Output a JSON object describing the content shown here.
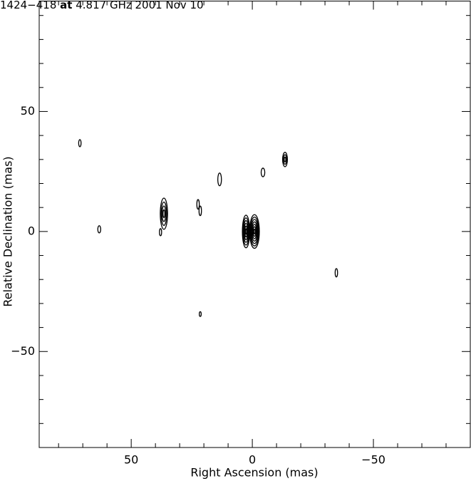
{
  "chart_data": {
    "type": "contour",
    "title": {
      "source": "1424−418",
      "at": "at",
      "rest": "4.817 GHz 2001 Nov 10"
    },
    "x_label": "Right Ascension  (mas)",
    "y_label": "Relative Declination  (mas)",
    "xlim": [
      88,
      -90
    ],
    "ylim": [
      -90,
      96
    ],
    "xticks": [
      50,
      0,
      {
        "value": -50,
        "label": "−50"
      }
    ],
    "yticks": [
      50,
      0,
      {
        "value": -50,
        "label": "−50"
      }
    ],
    "xminor_ticks": [
      80,
      70,
      60,
      40,
      30,
      20,
      10,
      -10,
      -20,
      -30,
      -40,
      -60,
      -70,
      -80
    ],
    "yminor_ticks": [
      90,
      80,
      70,
      60,
      40,
      30,
      20,
      10,
      -10,
      -20,
      -30,
      -40,
      -60,
      -70,
      -80
    ],
    "color": "#000000",
    "components": [
      {
        "x": 71.2,
        "y": 36.8,
        "width": 1,
        "height": 3,
        "levels": 1
      },
      {
        "x": 63.2,
        "y": 0.9,
        "width": 1.2,
        "height": 3,
        "levels": 1
      },
      {
        "x": 36.5,
        "y": 7.4,
        "width": 3,
        "height": 13,
        "levels": 4
      },
      {
        "x": 37.9,
        "y": -0.3,
        "width": 0.9,
        "height": 3,
        "levels": 1
      },
      {
        "x": 22.4,
        "y": 11.3,
        "width": 1,
        "height": 4,
        "levels": 1
      },
      {
        "x": 21.5,
        "y": 8.6,
        "width": 1,
        "height": 4,
        "levels": 1
      },
      {
        "x": 13.5,
        "y": 21.7,
        "width": 1.5,
        "height": 5.3,
        "levels": 1
      },
      {
        "x": 2.6,
        "y": 0,
        "width": 3,
        "height": 13.6,
        "levels": 6
      },
      {
        "x": -0.9,
        "y": 0,
        "width": 4,
        "height": 14,
        "levels": 7
      },
      {
        "x": -4.4,
        "y": 24.6,
        "width": 1.5,
        "height": 3.6,
        "levels": 1
      },
      {
        "x": -13.5,
        "y": 30,
        "width": 2,
        "height": 6,
        "levels": 3
      },
      {
        "x": -34.7,
        "y": -17.2,
        "width": 1,
        "height": 3.5,
        "levels": 1
      },
      {
        "x": 21.5,
        "y": -34.4,
        "width": 0.8,
        "height": 2,
        "levels": 1
      }
    ]
  }
}
